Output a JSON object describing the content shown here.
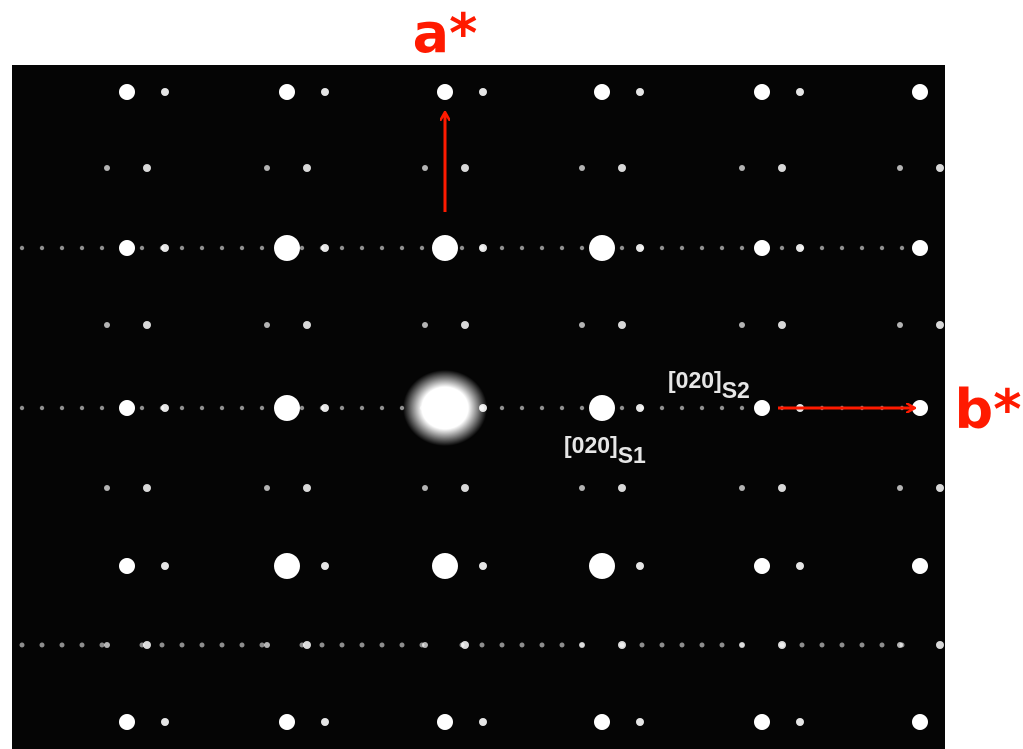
{
  "axis_labels": {
    "a": "a*",
    "b": "b*"
  },
  "spot_labels": [
    {
      "main": "[020]",
      "sub": "S1"
    },
    {
      "main": "[020]",
      "sub": "S2"
    }
  ]
}
